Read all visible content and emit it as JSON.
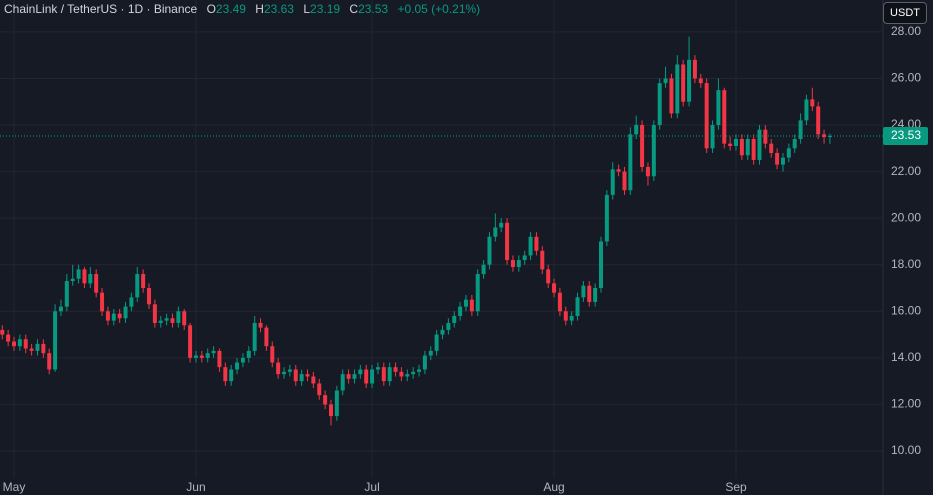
{
  "chart_data": {
    "type": "candlestick",
    "title": "ChainLink / TetherUS · 1D · Binance",
    "ohlc_labels": [
      "O",
      "H",
      "L",
      "C"
    ],
    "change_label": "+0.05 (+0.21%)",
    "currency": "USDT",
    "up_color": "#089981",
    "down_color": "#f23645",
    "grid": true,
    "categories": [
      null,
      null,
      "May",
      null,
      null,
      null,
      null,
      null,
      null,
      null,
      null,
      null,
      null,
      null,
      null,
      null,
      null,
      null,
      null,
      null,
      null,
      null,
      null,
      null,
      null,
      null,
      null,
      null,
      null,
      null,
      null,
      null,
      null,
      "Jun",
      null,
      null,
      null,
      null,
      null,
      null,
      null,
      null,
      null,
      null,
      null,
      null,
      null,
      null,
      null,
      null,
      null,
      null,
      null,
      null,
      null,
      null,
      null,
      null,
      null,
      null,
      null,
      null,
      null,
      "Jul",
      null,
      null,
      null,
      null,
      null,
      null,
      null,
      null,
      null,
      null,
      null,
      null,
      null,
      null,
      null,
      null,
      null,
      null,
      null,
      null,
      null,
      null,
      null,
      null,
      null,
      null,
      null,
      null,
      null,
      null,
      "Aug",
      null,
      null,
      null,
      null,
      null,
      null,
      null,
      null,
      null,
      null,
      null,
      null,
      null,
      null,
      null,
      null,
      null,
      null,
      null,
      null,
      null,
      null,
      null,
      null,
      null,
      null,
      null,
      null,
      null,
      null,
      "Sep",
      null,
      null,
      null,
      null,
      null,
      null,
      null,
      null,
      null,
      null,
      null,
      null,
      null,
      null,
      null,
      null
    ],
    "open": [
      15.2,
      15.0,
      14.7,
      14.5,
      14.8,
      14.4,
      14.3,
      14.6,
      14.2,
      13.5,
      16.0,
      16.2,
      17.3,
      17.4,
      17.8,
      17.2,
      17.6,
      16.8,
      16.0,
      15.6,
      15.9,
      15.7,
      16.2,
      16.6,
      17.6,
      17.0,
      16.3,
      15.5,
      15.6,
      15.7,
      15.5,
      16.0,
      15.4,
      14.0,
      14.1,
      14.0,
      14.2,
      14.3,
      13.6,
      13.0,
      13.5,
      13.8,
      14.0,
      14.3,
      15.5,
      15.3,
      14.5,
      13.8,
      13.3,
      13.4,
      13.5,
      13.0,
      13.3,
      13.2,
      12.9,
      12.4,
      12.0,
      11.5,
      12.6,
      13.3,
      13.1,
      13.3,
      13.5,
      12.9,
      13.5,
      13.6,
      13.0,
      13.6,
      13.4,
      13.2,
      13.3,
      13.4,
      13.5,
      14.1,
      14.3,
      15.0,
      15.2,
      15.5,
      15.8,
      16.2,
      16.5,
      16.0,
      17.6,
      18.0,
      19.2,
      19.6,
      19.8,
      18.2,
      17.9,
      18.2,
      18.4,
      19.2,
      18.6,
      17.8,
      17.2,
      16.8,
      16.0,
      15.6,
      15.8,
      16.6,
      17.1,
      16.4,
      17.0,
      19.0,
      21.0,
      22.1,
      22.0,
      21.2,
      23.6,
      24.0,
      22.2,
      21.8,
      24.0,
      25.8,
      26.0,
      24.5,
      26.6,
      25.0,
      26.8,
      26.0,
      25.8,
      23.0,
      24.0,
      25.5,
      23.2,
      23.1,
      23.4,
      22.7,
      23.4,
      22.5,
      23.8,
      23.2,
      22.8,
      22.3,
      22.6,
      23.0,
      23.4,
      24.2,
      25.1,
      24.8,
      23.6,
      23.49
    ],
    "high": [
      15.4,
      15.2,
      14.9,
      15.0,
      15.0,
      14.6,
      14.8,
      14.8,
      14.4,
      16.3,
      16.5,
      17.6,
      18.0,
      18.0,
      17.9,
      17.9,
      17.8,
      17.0,
      16.2,
      16.1,
      16.1,
      16.4,
      16.8,
      17.9,
      17.8,
      17.2,
      16.5,
      15.8,
      15.9,
      15.9,
      16.2,
      16.1,
      15.5,
      14.3,
      14.3,
      14.4,
      14.5,
      14.4,
      13.8,
      13.7,
      14.0,
      14.2,
      14.5,
      15.8,
      15.7,
      15.4,
      14.7,
      14.0,
      13.6,
      13.7,
      13.7,
      13.5,
      13.5,
      13.4,
      13.1,
      12.6,
      12.2,
      12.8,
      13.5,
      13.5,
      13.5,
      13.7,
      13.7,
      13.7,
      13.8,
      13.8,
      13.8,
      13.8,
      13.6,
      13.5,
      13.6,
      13.7,
      14.3,
      14.5,
      15.2,
      15.4,
      15.7,
      16.0,
      16.4,
      16.7,
      16.7,
      17.8,
      18.2,
      19.4,
      20.2,
      20.0,
      20.0,
      18.4,
      18.4,
      18.6,
      19.4,
      19.4,
      18.8,
      18.0,
      17.4,
      17.0,
      16.2,
      16.0,
      16.8,
      17.3,
      17.3,
      17.2,
      19.2,
      21.2,
      22.4,
      22.3,
      22.2,
      23.9,
      24.4,
      24.2,
      22.4,
      24.2,
      26.0,
      26.5,
      26.2,
      27.0,
      26.8,
      27.8,
      27.0,
      26.2,
      26.0,
      24.2,
      26.0,
      25.6,
      23.5,
      23.6,
      23.6,
      23.6,
      23.6,
      24.0,
      24.0,
      23.4,
      23.0,
      22.8,
      23.2,
      23.6,
      24.5,
      25.3,
      25.6,
      25.0,
      23.8,
      23.63
    ],
    "low": [
      14.8,
      14.5,
      14.3,
      14.3,
      14.2,
      14.1,
      14.1,
      14.0,
      13.3,
      13.4,
      15.8,
      16.0,
      17.1,
      17.2,
      17.0,
      17.0,
      16.6,
      15.8,
      15.4,
      15.4,
      15.5,
      15.5,
      16.0,
      16.4,
      16.8,
      16.1,
      15.3,
      15.3,
      15.4,
      15.3,
      15.3,
      15.2,
      13.8,
      13.8,
      13.8,
      13.8,
      14.0,
      13.4,
      12.8,
      12.8,
      13.3,
      13.6,
      13.8,
      14.1,
      15.1,
      14.3,
      13.6,
      13.1,
      13.1,
      13.2,
      12.8,
      12.8,
      13.0,
      12.7,
      12.2,
      11.8,
      11.1,
      11.3,
      12.4,
      12.9,
      12.9,
      13.1,
      12.7,
      12.7,
      13.3,
      12.8,
      12.8,
      13.2,
      13.0,
      13.0,
      13.1,
      13.2,
      13.3,
      13.9,
      14.1,
      14.8,
      15.0,
      15.3,
      15.6,
      16.0,
      15.8,
      15.8,
      17.4,
      17.8,
      19.0,
      19.4,
      18.0,
      17.7,
      17.7,
      18.0,
      18.2,
      18.4,
      17.6,
      17.0,
      16.6,
      15.8,
      15.4,
      15.4,
      15.6,
      16.4,
      16.2,
      16.2,
      16.8,
      18.8,
      20.8,
      21.8,
      21.0,
      21.0,
      23.4,
      22.0,
      21.4,
      21.6,
      23.8,
      25.6,
      24.3,
      24.3,
      24.8,
      24.8,
      25.8,
      25.6,
      22.8,
      22.8,
      23.8,
      23.0,
      22.9,
      22.9,
      22.5,
      22.5,
      22.3,
      22.3,
      23.0,
      22.6,
      22.1,
      22.0,
      22.4,
      22.8,
      23.2,
      24.0,
      24.6,
      23.4,
      23.2,
      23.19
    ],
    "close": [
      15.0,
      14.7,
      14.5,
      14.8,
      14.4,
      14.3,
      14.6,
      14.2,
      13.5,
      16.0,
      16.2,
      17.3,
      17.4,
      17.8,
      17.2,
      17.6,
      16.8,
      16.0,
      15.6,
      15.9,
      15.7,
      16.2,
      16.6,
      17.6,
      17.0,
      16.3,
      15.5,
      15.6,
      15.7,
      15.5,
      16.0,
      15.4,
      14.0,
      14.1,
      14.0,
      14.2,
      14.3,
      13.6,
      13.0,
      13.5,
      13.8,
      14.0,
      14.3,
      15.5,
      15.3,
      14.5,
      13.8,
      13.3,
      13.4,
      13.5,
      13.0,
      13.3,
      13.2,
      12.9,
      12.4,
      12.0,
      11.5,
      12.6,
      13.3,
      13.1,
      13.3,
      13.5,
      12.9,
      13.5,
      13.6,
      13.0,
      13.6,
      13.4,
      13.2,
      13.3,
      13.4,
      13.5,
      14.1,
      14.3,
      15.0,
      15.2,
      15.5,
      15.8,
      16.2,
      16.5,
      16.0,
      17.6,
      18.0,
      19.2,
      19.6,
      19.8,
      18.2,
      17.9,
      18.2,
      18.4,
      19.2,
      18.6,
      17.8,
      17.2,
      16.8,
      16.0,
      15.6,
      15.8,
      16.6,
      17.1,
      16.4,
      17.0,
      19.0,
      21.0,
      22.1,
      22.0,
      21.2,
      23.6,
      24.0,
      22.2,
      21.8,
      24.0,
      25.8,
      26.0,
      24.5,
      26.6,
      25.0,
      26.8,
      26.0,
      25.8,
      23.0,
      24.0,
      25.5,
      23.2,
      23.1,
      23.4,
      22.7,
      23.4,
      22.5,
      23.8,
      23.2,
      22.8,
      22.3,
      22.6,
      23.0,
      23.4,
      24.2,
      25.1,
      24.8,
      23.6,
      23.48,
      23.53
    ],
    "ylim": [
      8.84,
      29.37
    ],
    "yticks": [
      {
        "value": 10,
        "label": "10.00"
      },
      {
        "value": 12,
        "label": "12.00"
      },
      {
        "value": 14,
        "label": "14.00"
      },
      {
        "value": 16,
        "label": "16.00"
      },
      {
        "value": 18,
        "label": "18.00"
      },
      {
        "value": 20,
        "label": "20.00"
      },
      {
        "value": 22,
        "label": "22.00"
      },
      {
        "value": 24,
        "label": "24.00"
      },
      {
        "value": 26,
        "label": "26.00"
      },
      {
        "value": 28,
        "label": "28.00"
      }
    ]
  }
}
